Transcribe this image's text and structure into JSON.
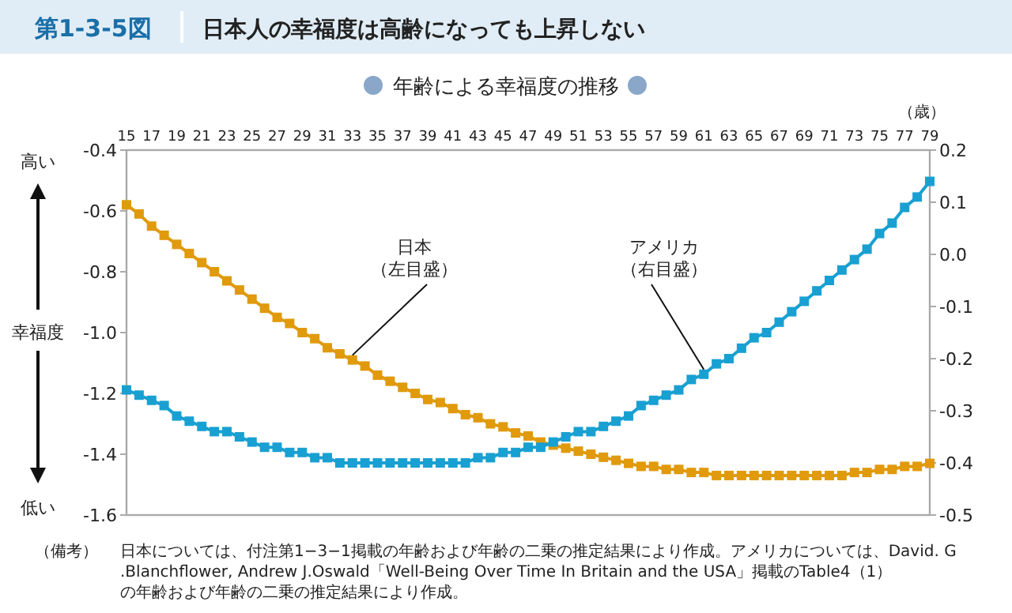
{
  "chart_data": {
    "type": "line",
    "title": "日本人の幸福度は高齢になっても上昇しない",
    "subtitle": "年齢による幸福度の推移",
    "ylabel": "幸福度",
    "xlabel": "（歳）",
    "annotations": [
      "第1-3-5図",
      "高い",
      "低い",
      "（備考）",
      "日本については、付注第1−3−1掲載の年齢および年齢の二乗の推定結果により作成。アメリカについては、David. G.Blanchflower, Andrew J.Oswald「Well-Being Over Time In Britain and the USA」掲載のTable4（1）の年齢および年齢の二乗の推定結果により作成。"
    ],
    "x": [
      15,
      16,
      17,
      18,
      19,
      20,
      21,
      22,
      23,
      24,
      25,
      26,
      27,
      28,
      29,
      30,
      31,
      32,
      33,
      34,
      35,
      36,
      37,
      38,
      39,
      40,
      41,
      42,
      43,
      44,
      45,
      46,
      47,
      48,
      49,
      50,
      51,
      52,
      53,
      54,
      55,
      56,
      57,
      58,
      59,
      60,
      61,
      62,
      63,
      64,
      65,
      66,
      67,
      68,
      69,
      70,
      71,
      72,
      73,
      74,
      75,
      76,
      77,
      78,
      79
    ],
    "series": [
      {
        "name": "日本（左目盛）",
        "color": "#e09a0c",
        "values": [
          -0.58,
          -0.61,
          -0.65,
          -0.68,
          -0.71,
          -0.74,
          -0.77,
          -0.8,
          -0.83,
          -0.86,
          -0.89,
          -0.92,
          -0.95,
          -0.97,
          -1.0,
          -1.02,
          -1.05,
          -1.07,
          -1.09,
          -1.11,
          -1.14,
          -1.16,
          -1.18,
          -1.2,
          -1.22,
          -1.23,
          -1.25,
          -1.27,
          -1.28,
          -1.3,
          -1.31,
          -1.33,
          -1.34,
          -1.36,
          -1.37,
          -1.38,
          -1.39,
          -1.4,
          -1.41,
          -1.42,
          -1.43,
          -1.44,
          -1.44,
          -1.45,
          -1.45,
          -1.46,
          -1.46,
          -1.47,
          -1.47,
          -1.47,
          -1.47,
          -1.47,
          -1.47,
          -1.47,
          -1.47,
          -1.47,
          -1.47,
          -1.47,
          -1.46,
          -1.46,
          -1.45,
          -1.45,
          -1.44,
          -1.44,
          -1.43
        ]
      },
      {
        "name": "アメリカ（右目盛）",
        "color": "#19a0d2",
        "axis": "y2",
        "values": [
          -0.26,
          -0.27,
          -0.28,
          -0.29,
          -0.31,
          -0.32,
          -0.33,
          -0.34,
          -0.34,
          -0.35,
          -0.36,
          -0.37,
          -0.37,
          -0.38,
          -0.38,
          -0.39,
          -0.39,
          -0.4,
          -0.4,
          -0.4,
          -0.4,
          -0.4,
          -0.4,
          -0.4,
          -0.4,
          -0.4,
          -0.4,
          -0.4,
          -0.39,
          -0.39,
          -0.38,
          -0.38,
          -0.37,
          -0.37,
          -0.36,
          -0.35,
          -0.34,
          -0.34,
          -0.33,
          -0.32,
          -0.31,
          -0.29,
          -0.28,
          -0.27,
          -0.26,
          -0.24,
          -0.23,
          -0.21,
          -0.2,
          -0.18,
          -0.16,
          -0.15,
          -0.13,
          -0.11,
          -0.09,
          -0.07,
          -0.05,
          -0.03,
          -0.01,
          0.01,
          0.04,
          0.06,
          0.09,
          0.11,
          0.14
        ]
      }
    ],
    "xlim": [
      15,
      79
    ],
    "xticks": [
      15,
      17,
      19,
      21,
      23,
      25,
      27,
      29,
      31,
      33,
      35,
      37,
      39,
      41,
      43,
      45,
      47,
      49,
      51,
      53,
      55,
      57,
      59,
      61,
      63,
      65,
      67,
      69,
      71,
      73,
      75,
      77,
      79
    ],
    "ylim": [
      -1.6,
      -0.4
    ],
    "yticks": [
      -1.6,
      -1.4,
      -1.2,
      {
        "value": -1,
        "label": "-1.0"
      },
      -0.8,
      -0.6,
      -0.4
    ],
    "y2lim": [
      -0.5,
      0.2
    ],
    "y2ticks": [
      -0.5,
      -0.4,
      -0.3,
      -0.2,
      -0.1,
      {
        "value": 0,
        "label": "0.0"
      },
      0.1,
      0.2
    ],
    "marker": "square",
    "line_style": "solid",
    "grid": false
  }
}
